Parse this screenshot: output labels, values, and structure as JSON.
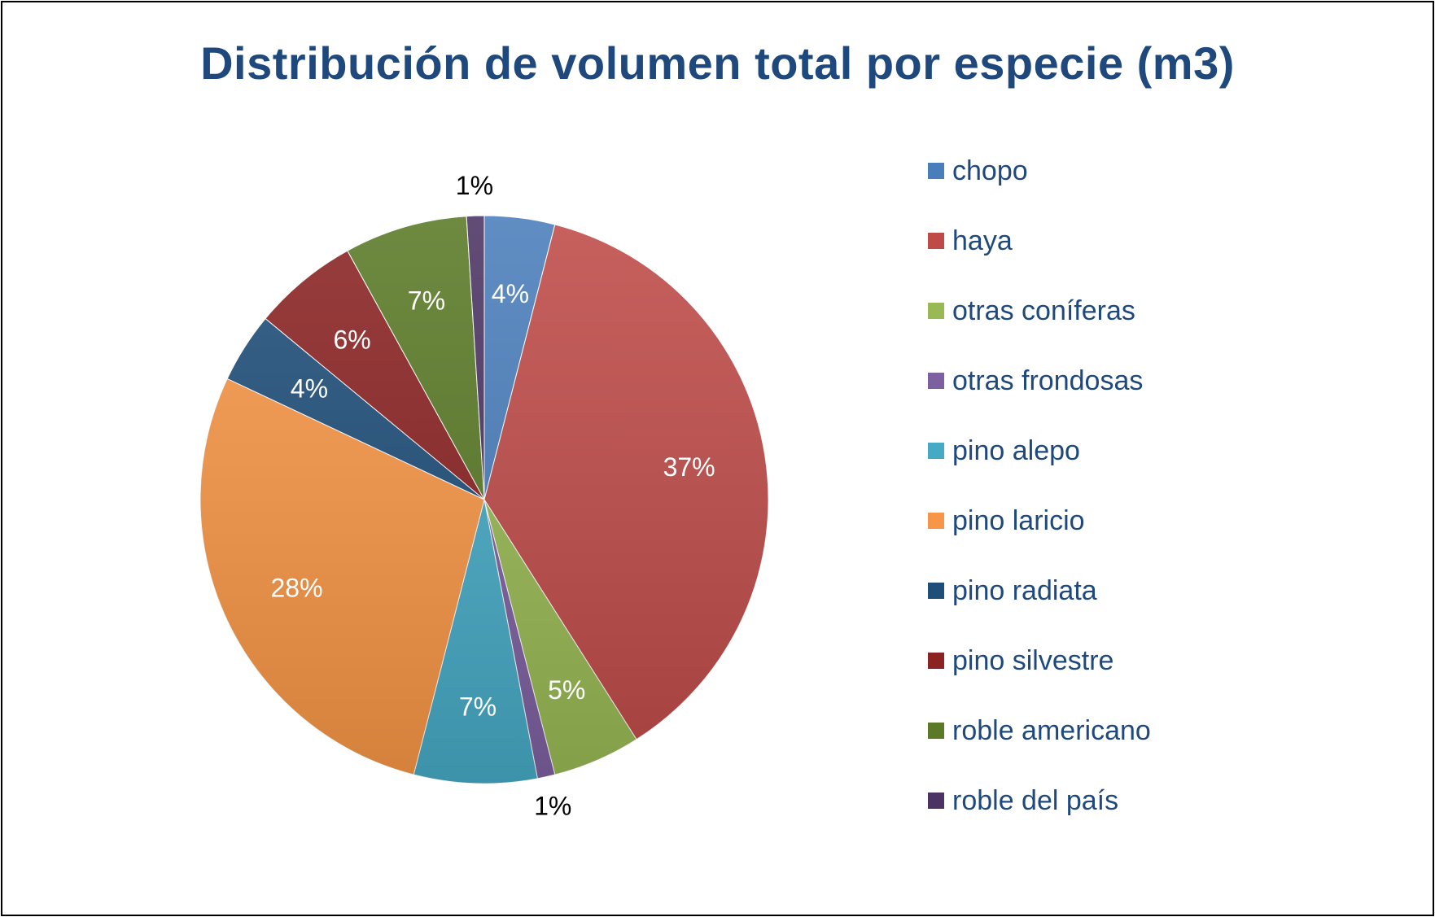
{
  "chart_data": {
    "type": "pie",
    "title": "Distribución de volumen total por especie (m3)",
    "slices": [
      {
        "label": "chopo",
        "value": 4,
        "value_label": "4%",
        "color": "#4a7ebb"
      },
      {
        "label": "haya",
        "value": 37,
        "value_label": "37%",
        "color": "#be4b48"
      },
      {
        "label": "otras coníferas",
        "value": 5,
        "value_label": "5%",
        "color": "#98b954"
      },
      {
        "label": "otras frondosas",
        "value": 1,
        "value_label": "1%",
        "color": "#7d60a0"
      },
      {
        "label": "pino alepo",
        "value": 7,
        "value_label": "7%",
        "color": "#46aac5"
      },
      {
        "label": "pino laricio",
        "value": 28,
        "value_label": "28%",
        "color": "#f79646"
      },
      {
        "label": "pino radiata",
        "value": 4,
        "value_label": "4%",
        "color": "#1f4e79"
      },
      {
        "label": "pino silvestre",
        "value": 6,
        "value_label": "6%",
        "color": "#8b2323"
      },
      {
        "label": "roble americano",
        "value": 7,
        "value_label": "7%",
        "color": "#5a7a27"
      },
      {
        "label": "roble del país",
        "value": 1,
        "value_label": "1%",
        "color": "#4b3463"
      }
    ],
    "legend_position": "right",
    "data_labels": "percent"
  }
}
